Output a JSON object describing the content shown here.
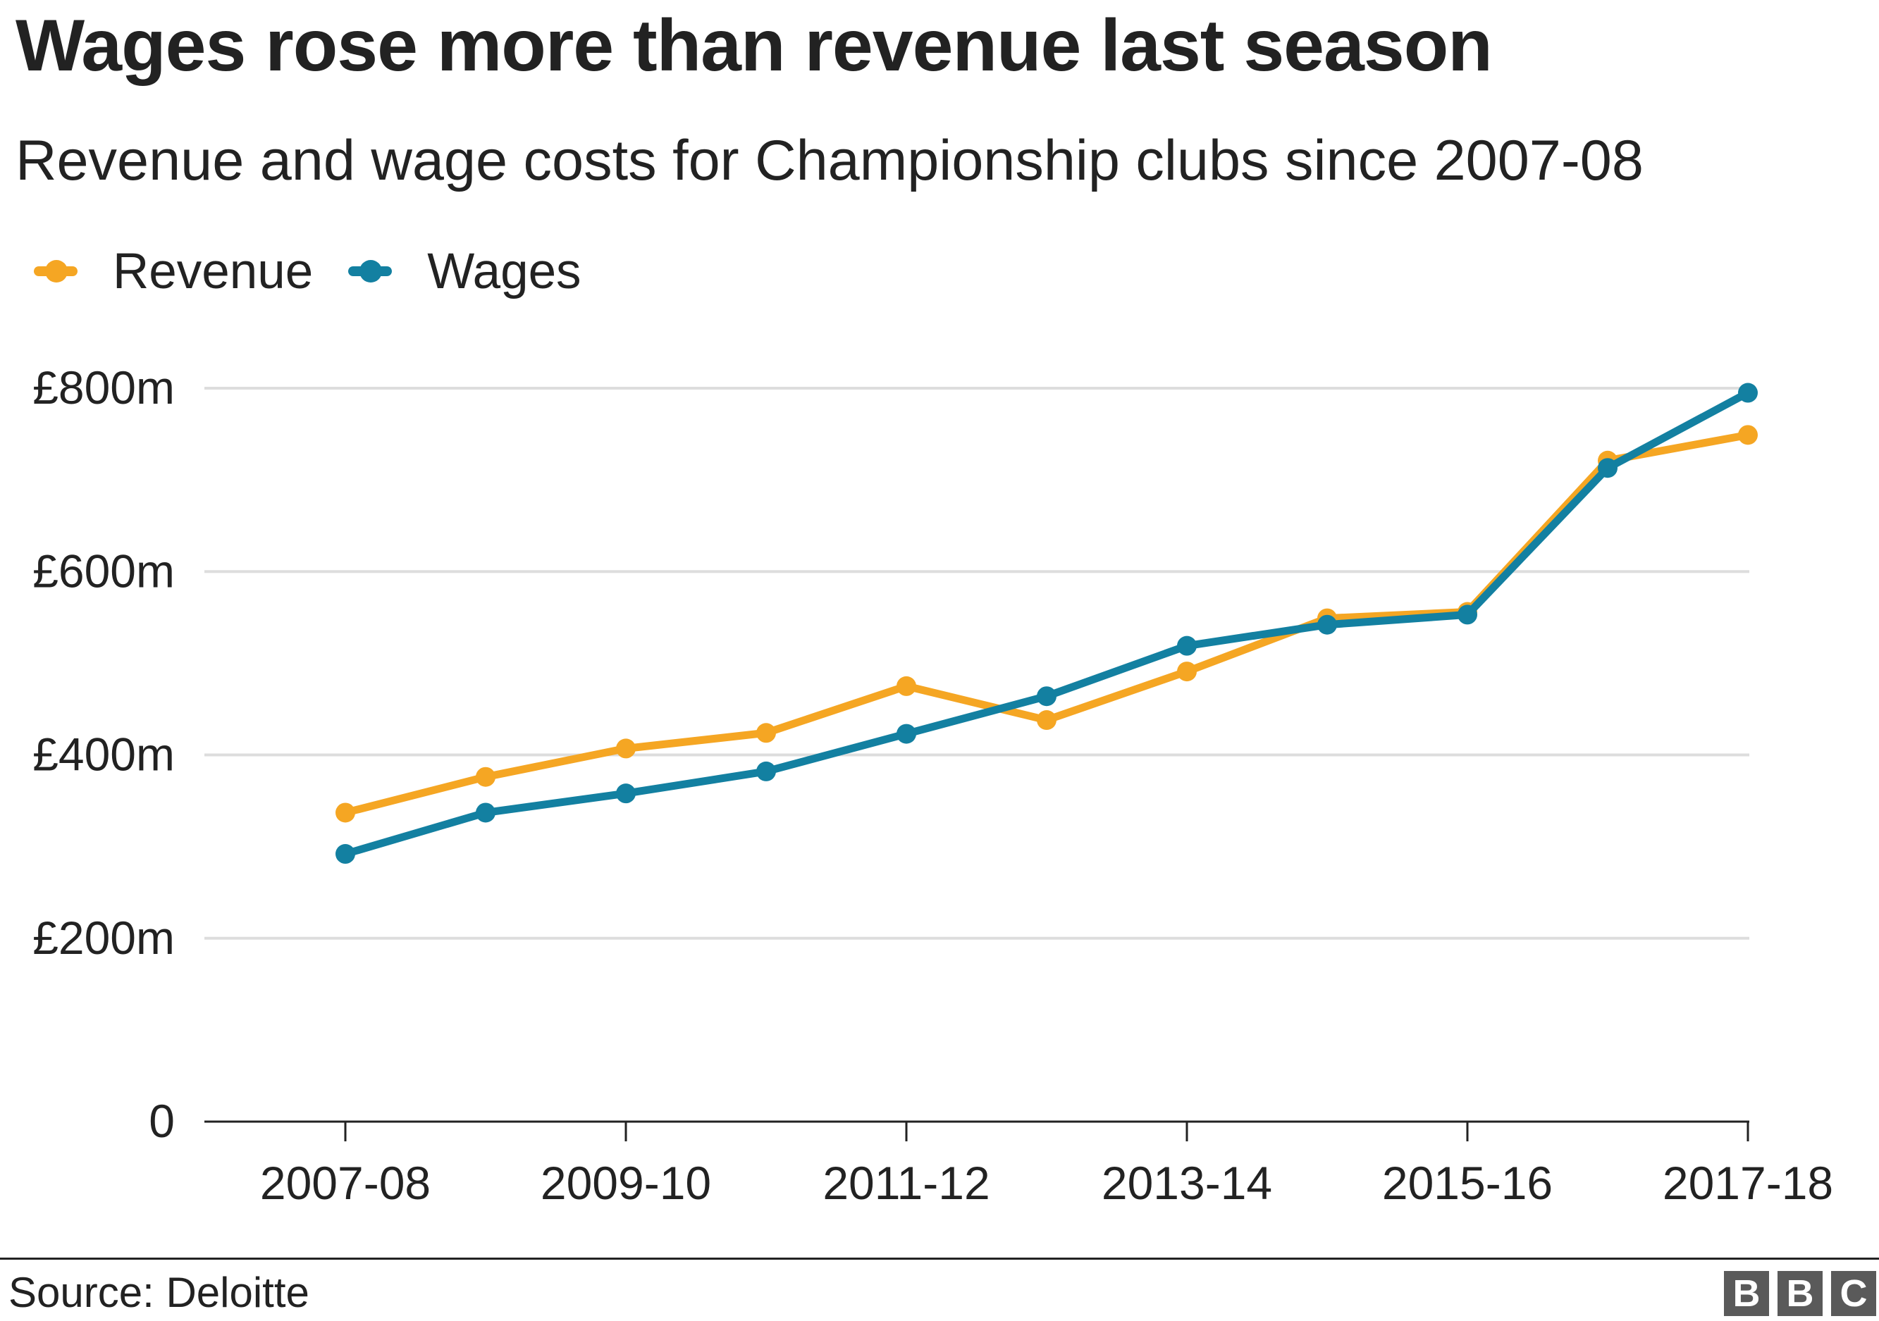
{
  "header": {
    "title": "Wages rose more than revenue last season",
    "subtitle": "Revenue and wage costs for Championship clubs since 2007-08"
  },
  "legend": {
    "items": [
      {
        "label": "Revenue",
        "color": "#f5a623"
      },
      {
        "label": "Wages",
        "color": "#1380a1"
      }
    ]
  },
  "chart_data": {
    "type": "line",
    "x": [
      "2007-08",
      "2008-09",
      "2009-10",
      "2010-11",
      "2011-12",
      "2012-13",
      "2013-14",
      "2014-15",
      "2015-16",
      "2016-17",
      "2017-18"
    ],
    "x_tick_labels": [
      "2007-08",
      "2009-10",
      "2011-12",
      "2013-14",
      "2015-16",
      "2017-18"
    ],
    "y_tick_labels": [
      "0",
      "£200m",
      "£400m",
      "£600m",
      "£800m"
    ],
    "y_ticks": [
      0,
      200,
      400,
      600,
      800
    ],
    "ylim": [
      0,
      800
    ],
    "y_unit": "£m",
    "grid": true,
    "legend_position": "top-left",
    "series": [
      {
        "name": "Revenue",
        "color": "#f5a623",
        "values": [
          337,
          376,
          407,
          424,
          475,
          438,
          491,
          549,
          556,
          721,
          749
        ]
      },
      {
        "name": "Wages",
        "color": "#1380a1",
        "values": [
          292,
          337,
          358,
          382,
          423,
          464,
          519,
          542,
          553,
          713,
          795
        ]
      }
    ]
  },
  "footer": {
    "source": "Source: Deloitte",
    "logo_letters": [
      "B",
      "B",
      "C"
    ]
  }
}
